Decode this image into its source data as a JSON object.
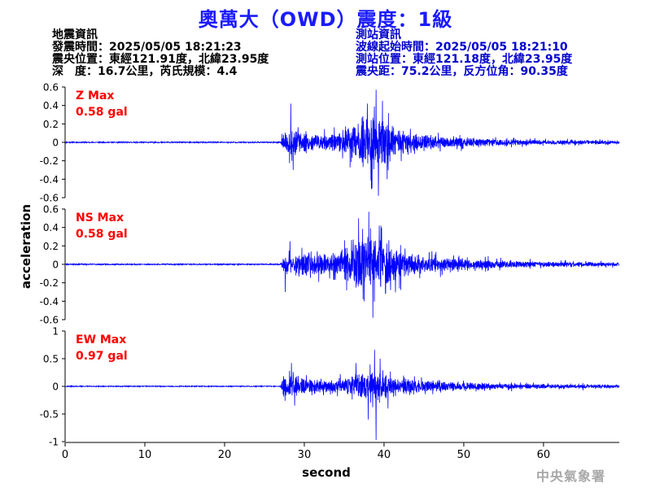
{
  "title": "奧萬大（OWD）震度：1級",
  "quake_info": {
    "heading": "地震資訊",
    "origin_time": "發震時間：2025/05/05 18:21:23",
    "epicenter": "震央位置：東經121.91度，北緯23.95度",
    "depth_mag": "深　度：16.7公里，芮氏規模：4.4"
  },
  "station_info": {
    "heading": "測站資訊",
    "wave_start": "波線起始時間：2025/05/05 18:21:10",
    "station_loc": "測站位置：東經121.18度，北緯23.95度",
    "distance": "震央距：75.2公里，反方位角：90.35度"
  },
  "agency": "中央氣象署",
  "chart_data": [
    {
      "type": "line",
      "name": "Z",
      "label_line1": "Z Max",
      "label_line2": "0.58 gal",
      "ylim": [
        -0.6,
        0.6
      ],
      "yticks": [
        0.6,
        0.4,
        0.2,
        0,
        -0.2,
        -0.4,
        -0.6
      ],
      "yticklabels": [
        "0.6",
        "0.4",
        "0.2",
        "0",
        "-0.2",
        "-0.4",
        "-0.6"
      ],
      "noise": 0.006,
      "envelope": [
        [
          0,
          0.006
        ],
        [
          27.0,
          0.006
        ],
        [
          27.4,
          0.1
        ],
        [
          28,
          0.14
        ],
        [
          30,
          0.11
        ],
        [
          33,
          0.08
        ],
        [
          35,
          0.12
        ],
        [
          37,
          0.26
        ],
        [
          39,
          0.3
        ],
        [
          40.5,
          0.22
        ],
        [
          42,
          0.12
        ],
        [
          45,
          0.08
        ],
        [
          50,
          0.05
        ],
        [
          55,
          0.035
        ],
        [
          60,
          0.025
        ],
        [
          70,
          0.02
        ]
      ],
      "peaks": [
        [
          28.3,
          0.42
        ],
        [
          28.6,
          -0.3
        ],
        [
          37.9,
          0.42
        ],
        [
          38.5,
          -0.5
        ],
        [
          39.0,
          0.57
        ],
        [
          39.3,
          -0.58
        ],
        [
          39.8,
          0.45
        ],
        [
          40.4,
          -0.4
        ]
      ],
      "seed": 11
    },
    {
      "type": "line",
      "name": "NS",
      "label_line1": "NS Max",
      "label_line2": "0.58 gal",
      "ylim": [
        -0.6,
        0.6
      ],
      "yticks": [
        0.6,
        0.4,
        0.2,
        0,
        -0.2,
        -0.4,
        -0.6
      ],
      "yticklabels": [
        "0.6",
        "0.4",
        "0.2",
        "0",
        "-0.2",
        "-0.4",
        "-0.6"
      ],
      "noise": 0.006,
      "envelope": [
        [
          0,
          0.006
        ],
        [
          27.0,
          0.006
        ],
        [
          27.4,
          0.1
        ],
        [
          28,
          0.13
        ],
        [
          30,
          0.12
        ],
        [
          33,
          0.1
        ],
        [
          35,
          0.16
        ],
        [
          37,
          0.28
        ],
        [
          39,
          0.3
        ],
        [
          40.5,
          0.24
        ],
        [
          42,
          0.16
        ],
        [
          45,
          0.1
        ],
        [
          50,
          0.06
        ],
        [
          55,
          0.04
        ],
        [
          60,
          0.03
        ],
        [
          70,
          0.02
        ]
      ],
      "peaks": [
        [
          28.2,
          0.25
        ],
        [
          27.6,
          -0.3
        ],
        [
          36.8,
          0.5
        ],
        [
          37.5,
          -0.4
        ],
        [
          38.1,
          0.57
        ],
        [
          38.6,
          -0.58
        ],
        [
          39.4,
          0.42
        ],
        [
          40.2,
          -0.32
        ]
      ],
      "seed": 23
    },
    {
      "type": "line",
      "name": "EW",
      "label_line1": "EW Max",
      "label_line2": "0.97 gal",
      "ylim": [
        -1,
        1
      ],
      "yticks": [
        1,
        0.5,
        0,
        -0.5,
        -1
      ],
      "yticklabels": [
        "1",
        "0.5",
        "0",
        "-0.5",
        "-1"
      ],
      "noise": 0.008,
      "envelope": [
        [
          0,
          0.008
        ],
        [
          27.0,
          0.008
        ],
        [
          27.4,
          0.18
        ],
        [
          28,
          0.2
        ],
        [
          30,
          0.14
        ],
        [
          33,
          0.1
        ],
        [
          35,
          0.14
        ],
        [
          37,
          0.24
        ],
        [
          38.5,
          0.3
        ],
        [
          40,
          0.22
        ],
        [
          42,
          0.15
        ],
        [
          45,
          0.1
        ],
        [
          50,
          0.07
        ],
        [
          55,
          0.05
        ],
        [
          60,
          0.04
        ],
        [
          70,
          0.03
        ]
      ],
      "peaks": [
        [
          28.4,
          0.42
        ],
        [
          28.8,
          -0.35
        ],
        [
          36.5,
          0.42
        ],
        [
          38.0,
          -0.6
        ],
        [
          38.8,
          0.66
        ],
        [
          39.0,
          -0.97
        ],
        [
          39.5,
          0.5
        ],
        [
          40.5,
          -0.4
        ]
      ],
      "seed": 37
    }
  ],
  "x_axis": {
    "label": "second",
    "xlim": [
      0,
      69.5
    ],
    "ticks": [
      0,
      10,
      20,
      30,
      40,
      50,
      60
    ],
    "ticklabels": [
      "0",
      "10",
      "20",
      "30",
      "40",
      "50",
      "60"
    ]
  },
  "y_axis": {
    "label": "acceleration"
  },
  "colors": {
    "trace": "#0000ff",
    "label": "#ff0000",
    "title": "#1a1aff",
    "axis": "#000000"
  }
}
